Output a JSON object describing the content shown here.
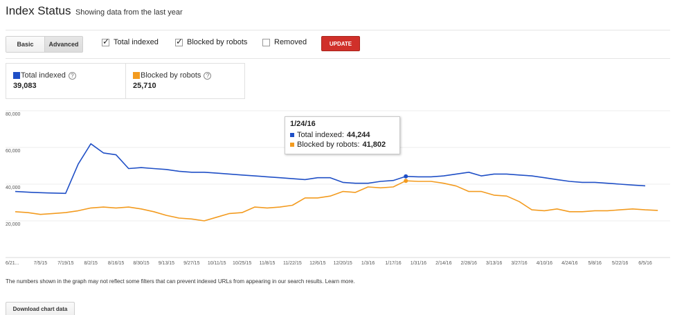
{
  "header": {
    "title": "Index Status",
    "subtitle": "Showing data from the last year"
  },
  "controls": {
    "view_basic": "Basic",
    "view_advanced": "Advanced",
    "selected_view": "Advanced",
    "checkboxes": [
      {
        "label": "Total indexed",
        "checked": true
      },
      {
        "label": "Blocked by robots",
        "checked": true
      },
      {
        "label": "Removed",
        "checked": false
      }
    ],
    "update_label": "UPDATE",
    "update_color": "#d0302a"
  },
  "stats": [
    {
      "label": "Total indexed",
      "value": "39,083",
      "color": "#1f4fc6",
      "help": "?"
    },
    {
      "label": "Blocked by robots",
      "value": "25,710",
      "color": "#f39b1f",
      "help": "?"
    }
  ],
  "tooltip": {
    "date": "1/24/16",
    "rows": [
      {
        "label": "Total indexed:",
        "value": "44,244",
        "color": "#1f4fc6"
      },
      {
        "label": "Blocked by robots:",
        "value": "41,802",
        "color": "#f39b1f"
      }
    ]
  },
  "chart_data": {
    "type": "line",
    "yticks": [
      "80,000",
      "60,000",
      "40,000",
      "20,000"
    ],
    "ylim": [
      0,
      80000
    ],
    "xticks": [
      "6/21...",
      "7/5/15",
      "7/19/15",
      "8/2/15",
      "8/16/15",
      "8/30/15",
      "9/13/15",
      "9/27/15",
      "10/11/15",
      "10/25/15",
      "11/8/15",
      "11/22/15",
      "12/6/15",
      "12/20/15",
      "1/3/16",
      "1/17/16",
      "1/31/16",
      "2/14/16",
      "2/28/16",
      "3/13/16",
      "3/27/16",
      "4/10/16",
      "4/24/16",
      "5/8/16",
      "5/22/16",
      "6/5/16"
    ],
    "series": [
      {
        "name": "Total indexed",
        "color": "#1f4fc6",
        "points": [
          [
            0,
            36000
          ],
          [
            0.7,
            35500
          ],
          [
            1.3,
            35200
          ],
          [
            2,
            35000
          ],
          [
            2.5,
            51000
          ],
          [
            3,
            62000
          ],
          [
            3.5,
            57000
          ],
          [
            4,
            56000
          ],
          [
            4.5,
            48500
          ],
          [
            5,
            49000
          ],
          [
            5.5,
            48500
          ],
          [
            6,
            48000
          ],
          [
            6.5,
            47000
          ],
          [
            7,
            46500
          ],
          [
            7.5,
            46500
          ],
          [
            8,
            46000
          ],
          [
            8.5,
            45500
          ],
          [
            9,
            45000
          ],
          [
            9.5,
            44500
          ],
          [
            10,
            44000
          ],
          [
            10.5,
            43500
          ],
          [
            11,
            43000
          ],
          [
            11.5,
            42500
          ],
          [
            12,
            43500
          ],
          [
            12.5,
            43500
          ],
          [
            13,
            41000
          ],
          [
            13.5,
            40500
          ],
          [
            14,
            40500
          ],
          [
            14.5,
            41500
          ],
          [
            15,
            42000
          ],
          [
            15.5,
            44244
          ],
          [
            16,
            44000
          ],
          [
            16.5,
            44000
          ],
          [
            17,
            44500
          ],
          [
            17.5,
            45500
          ],
          [
            18,
            46500
          ],
          [
            18.5,
            44500
          ],
          [
            19,
            45500
          ],
          [
            19.5,
            45500
          ],
          [
            20,
            45000
          ],
          [
            20.5,
            44500
          ],
          [
            21,
            43500
          ],
          [
            21.5,
            42500
          ],
          [
            22,
            41500
          ],
          [
            22.5,
            41000
          ],
          [
            23,
            41000
          ],
          [
            23.5,
            40500
          ],
          [
            24,
            40000
          ],
          [
            24.5,
            39500
          ],
          [
            25,
            39083
          ]
        ]
      },
      {
        "name": "Blocked by robots",
        "color": "#f39b1f",
        "points": [
          [
            0,
            25000
          ],
          [
            0.5,
            24500
          ],
          [
            1,
            23500
          ],
          [
            1.5,
            24000
          ],
          [
            2,
            24500
          ],
          [
            2.5,
            25500
          ],
          [
            3,
            27000
          ],
          [
            3.5,
            27500
          ],
          [
            4,
            27000
          ],
          [
            4.5,
            27500
          ],
          [
            5,
            26500
          ],
          [
            5.5,
            25000
          ],
          [
            6,
            23000
          ],
          [
            6.5,
            21500
          ],
          [
            7,
            21000
          ],
          [
            7.5,
            20000
          ],
          [
            8,
            22000
          ],
          [
            8.5,
            24000
          ],
          [
            9,
            24500
          ],
          [
            9.5,
            27500
          ],
          [
            10,
            27000
          ],
          [
            10.5,
            27500
          ],
          [
            11,
            28500
          ],
          [
            11.5,
            32500
          ],
          [
            12,
            32500
          ],
          [
            12.5,
            33500
          ],
          [
            13,
            36000
          ],
          [
            13.5,
            35500
          ],
          [
            14,
            38500
          ],
          [
            14.5,
            38000
          ],
          [
            15,
            38500
          ],
          [
            15.5,
            41802
          ],
          [
            16,
            41500
          ],
          [
            16.5,
            41500
          ],
          [
            17,
            40500
          ],
          [
            17.5,
            39000
          ],
          [
            18,
            36000
          ],
          [
            18.5,
            36000
          ],
          [
            19,
            34000
          ],
          [
            19.5,
            33500
          ],
          [
            20,
            30500
          ],
          [
            20.5,
            26000
          ],
          [
            21,
            25500
          ],
          [
            21.5,
            26500
          ],
          [
            22,
            25000
          ],
          [
            22.5,
            25000
          ],
          [
            23,
            25500
          ],
          [
            23.5,
            25500
          ],
          [
            24,
            26000
          ],
          [
            24.5,
            26500
          ],
          [
            25,
            26000
          ],
          [
            25.5,
            25710
          ]
        ]
      }
    ],
    "highlight": {
      "x": 15.5
    },
    "grid": true,
    "legend": "none"
  },
  "footer": {
    "note": "The numbers shown in the graph may not reflect some filters that can prevent indexed URLs from appearing in our search results. Learn more.",
    "download_label": "Download chart data"
  }
}
